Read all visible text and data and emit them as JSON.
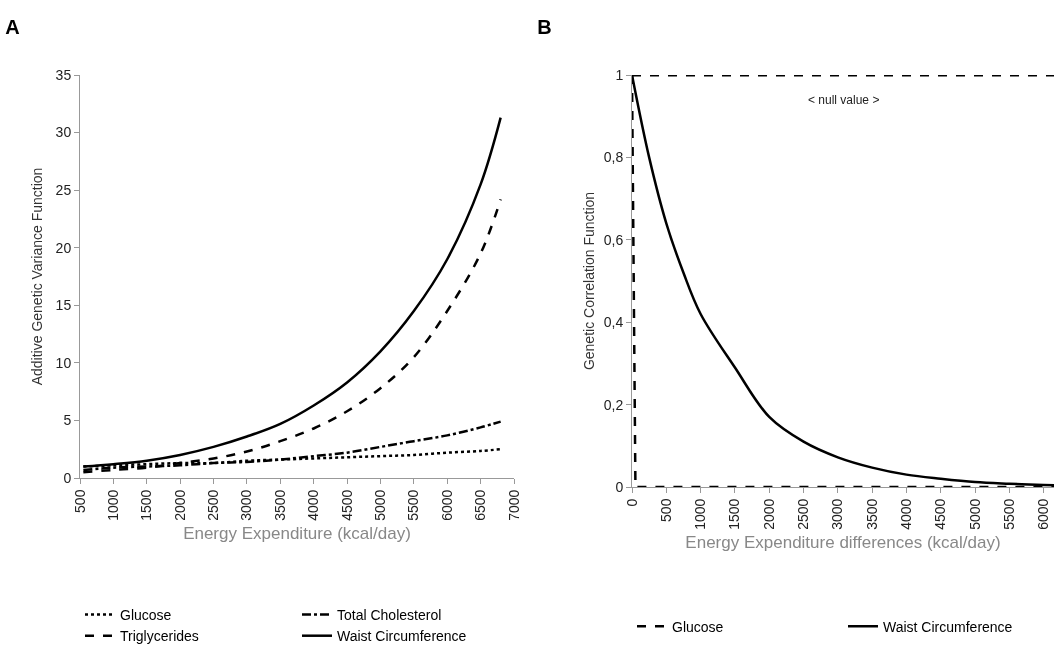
{
  "chart_data": [
    {
      "type": "line",
      "title": "A",
      "xlabel": "Energy Expenditure (kcal/day)",
      "ylabel": "Additive Genetic Variance Function",
      "legend": "bottom",
      "grid": false,
      "xlim": [
        500,
        7000
      ],
      "xticks": [
        500,
        1000,
        1500,
        2000,
        2500,
        3000,
        3500,
        4000,
        4500,
        5000,
        5500,
        6000,
        6500,
        7000
      ],
      "ylim": [
        0,
        35
      ],
      "yticks": [
        0,
        5,
        10,
        15,
        20,
        25,
        30,
        35
      ],
      "x": [
        550,
        1000,
        1500,
        2000,
        2500,
        3000,
        3500,
        4000,
        4500,
        5000,
        5500,
        6000,
        6500,
        6800
      ],
      "series": [
        {
          "name": "Glucose",
          "color": "#000000",
          "line_style": "dotted",
          "values": [
            1.0,
            1.1,
            1.2,
            1.3,
            1.3,
            1.5,
            1.6,
            1.7,
            1.8,
            1.9,
            2.0,
            2.2,
            2.35,
            2.5
          ]
        },
        {
          "name": "Total Cholesterol",
          "color": "#000000",
          "line_style": "dashdot",
          "values": [
            0.7,
            0.9,
            1.0,
            1.1,
            1.3,
            1.4,
            1.6,
            1.9,
            2.2,
            2.7,
            3.2,
            3.7,
            4.4,
            4.9
          ]
        },
        {
          "name": "Triglycerides",
          "color": "#000000",
          "line_style": "dashed",
          "values": [
            0.5,
            0.7,
            0.9,
            1.3,
            1.7,
            2.3,
            3.2,
            4.3,
            5.8,
            7.8,
            10.5,
            14.5,
            19.5,
            24.2
          ]
        },
        {
          "name": "Waist Circumference",
          "color": "#000000",
          "line_style": "solid",
          "values": [
            1.0,
            1.2,
            1.5,
            2.0,
            2.7,
            3.6,
            4.7,
            6.3,
            8.3,
            11,
            14.5,
            19,
            25.5,
            31.3
          ]
        }
      ]
    },
    {
      "type": "line",
      "title": "B",
      "xlabel": "Energy Expenditure differences (kcal/day)",
      "ylabel": "Genetic Correlation Function",
      "legend": "bottom",
      "grid": false,
      "xlim": [
        0,
        6150
      ],
      "xticks": [
        0,
        500,
        1000,
        1500,
        2000,
        2500,
        3000,
        3500,
        4000,
        4500,
        5000,
        5500,
        6000
      ],
      "ylim": [
        0,
        1
      ],
      "yticks": [
        0,
        {
          "value": 0.2,
          "label": "0,2"
        },
        {
          "value": 0.4,
          "label": "0,4"
        },
        {
          "value": 0.6,
          "label": "0,6"
        },
        {
          "value": 0.8,
          "label": "0,8"
        },
        1
      ],
      "ref_lines": [
        {
          "axis": "y",
          "value": 1,
          "label": "< null value >",
          "color": "#000000",
          "line_style": "dashed"
        }
      ],
      "series": [
        {
          "name": "Glucose",
          "color": "#000000",
          "line_style": "dashed",
          "x": [
            0,
            50,
            6150
          ],
          "values": [
            1,
            0,
            0
          ]
        },
        {
          "name": "Waist Circumference",
          "color": "#000000",
          "line_style": "solid",
          "x": [
            0,
            250,
            500,
            750,
            1000,
            1500,
            2000,
            2500,
            3000,
            3500,
            4000,
            4500,
            5000,
            5500,
            6000,
            6150
          ],
          "values": [
            1,
            0.8,
            0.64,
            0.52,
            0.42,
            0.29,
            0.17,
            0.11,
            0.072,
            0.047,
            0.03,
            0.02,
            0.012,
            0.008,
            0.005,
            0.004
          ]
        }
      ]
    }
  ]
}
